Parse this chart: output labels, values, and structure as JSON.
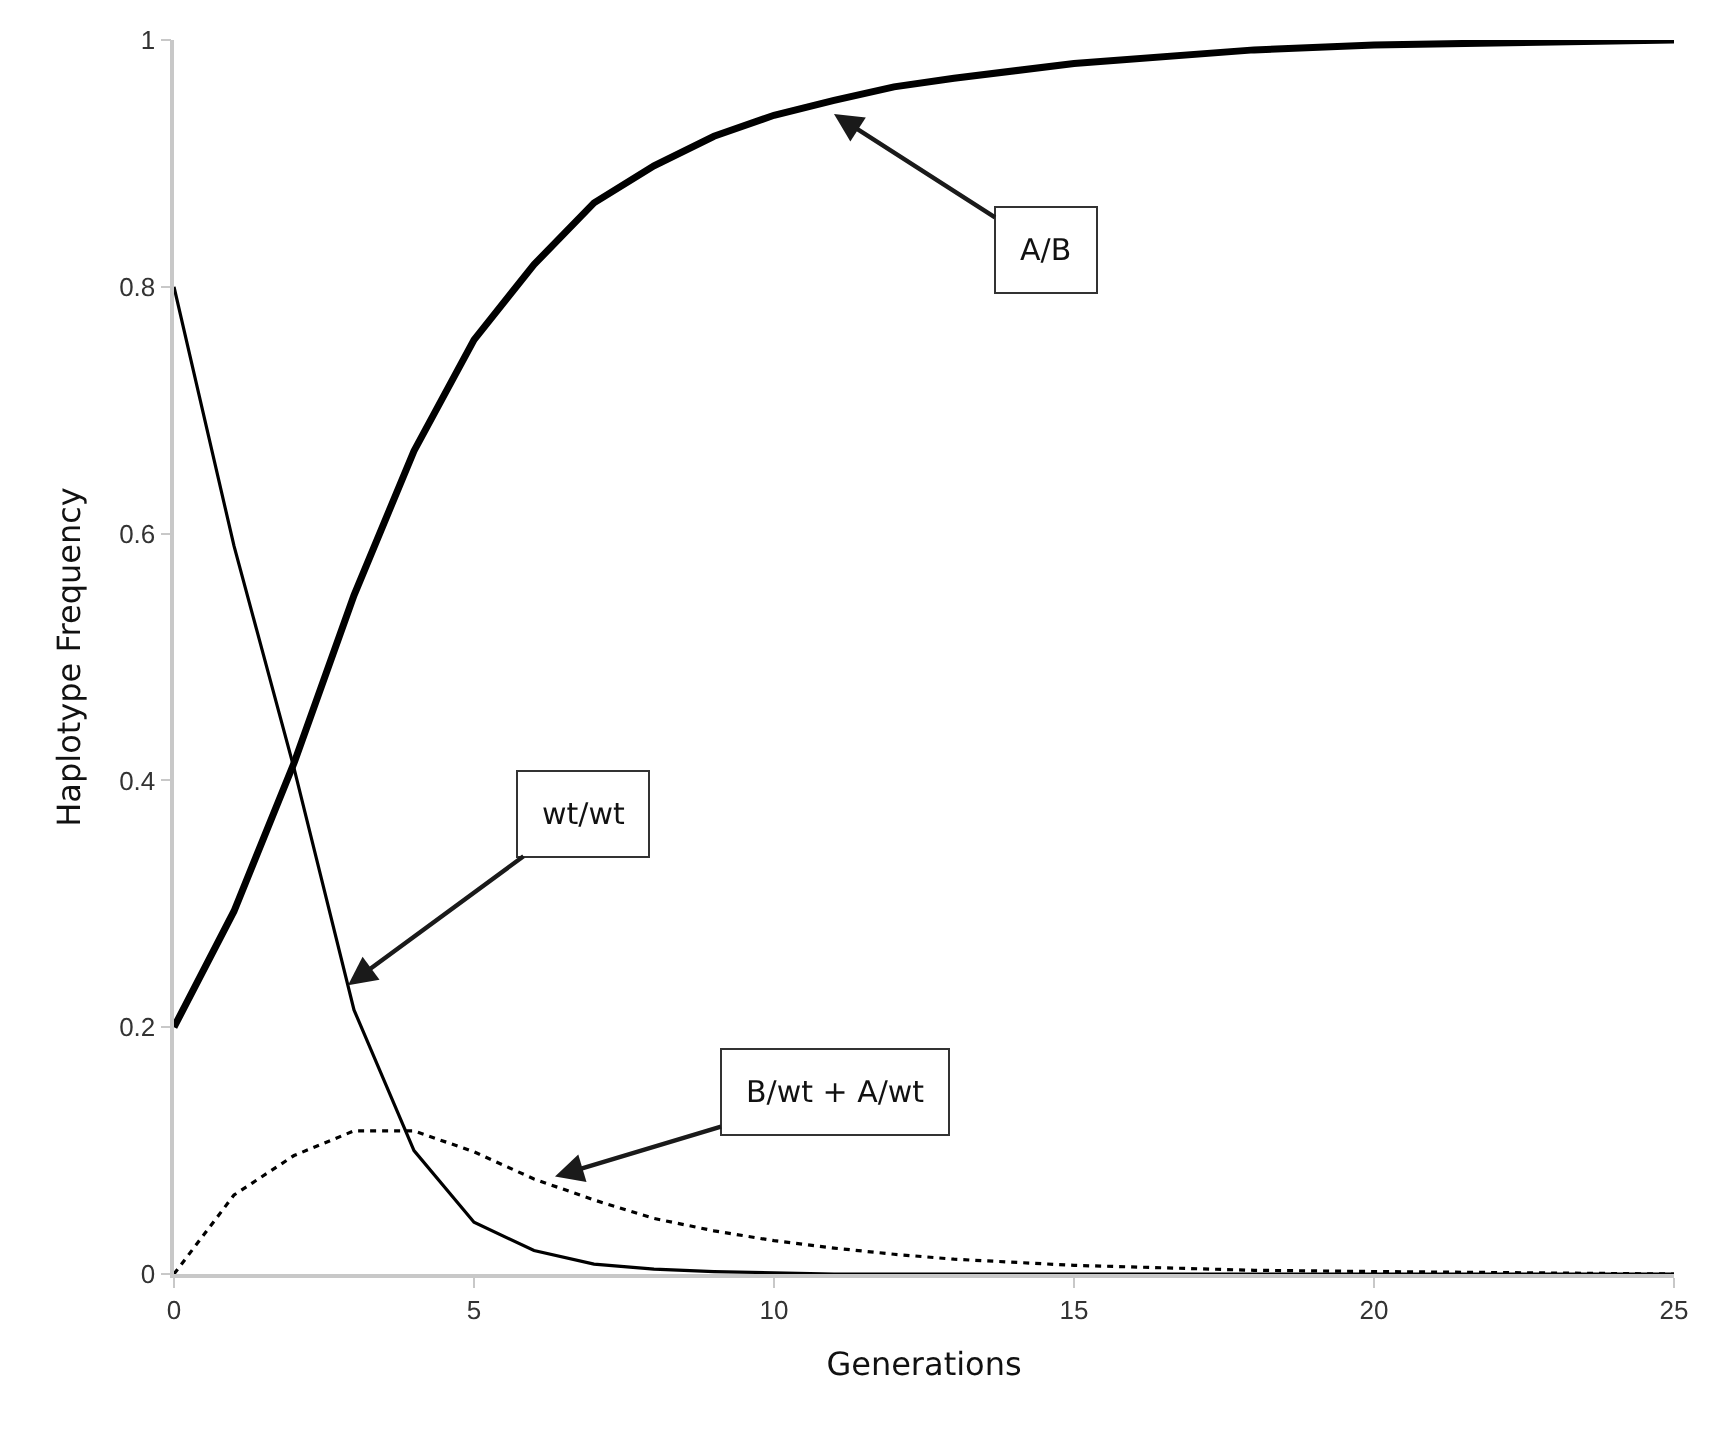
{
  "chart_data": {
    "type": "line",
    "xlabel": "Generations",
    "ylabel": "Haplotype Frequency",
    "x": [
      0,
      1,
      2,
      3,
      4,
      5,
      6,
      7,
      8,
      9,
      10,
      11,
      12,
      13,
      15,
      18,
      20,
      25
    ],
    "series": [
      {
        "color": "#000000",
        "line_style": "solid",
        "values": [
          0.2,
          0.294,
          0.414,
          0.55,
          0.667,
          0.757,
          0.818,
          0.868,
          0.898,
          0.922,
          0.939,
          0.951,
          0.962,
          0.969,
          0.981,
          0.992,
          0.996,
          1.0
        ]
      },
      {
        "color": "#000000",
        "line_style": "solid",
        "values": [
          0.8,
          0.59,
          0.41,
          0.214,
          0.1,
          0.042,
          0.019,
          0.008,
          0.004,
          0.002,
          0.001,
          0,
          0,
          0,
          0,
          0,
          0,
          0
        ]
      },
      {
        "color": "#000000",
        "line_style": "dotted",
        "values": [
          0,
          0.064,
          0.096,
          0.116,
          0.116,
          0.099,
          0.077,
          0.06,
          0.045,
          0.035,
          0.027,
          0.021,
          0.016,
          0.012,
          0.007,
          0.003,
          0.002,
          0
        ]
      }
    ],
    "annotations": [
      {
        "text": "A/B",
        "x": 11,
        "y": 0.94
      },
      {
        "text": "wt/wt",
        "x": 2.9,
        "y": 0.234
      },
      {
        "text": "B/wt + A/wt",
        "x": 6.35,
        "y": 0.079
      }
    ],
    "xlim": [
      0,
      25
    ],
    "xticks": [
      0,
      5,
      10,
      15,
      20,
      25
    ],
    "ylim": [
      0,
      1
    ],
    "yticks": [
      0,
      0.2,
      0.4,
      0.6,
      0.8,
      1
    ],
    "marker": "none"
  }
}
